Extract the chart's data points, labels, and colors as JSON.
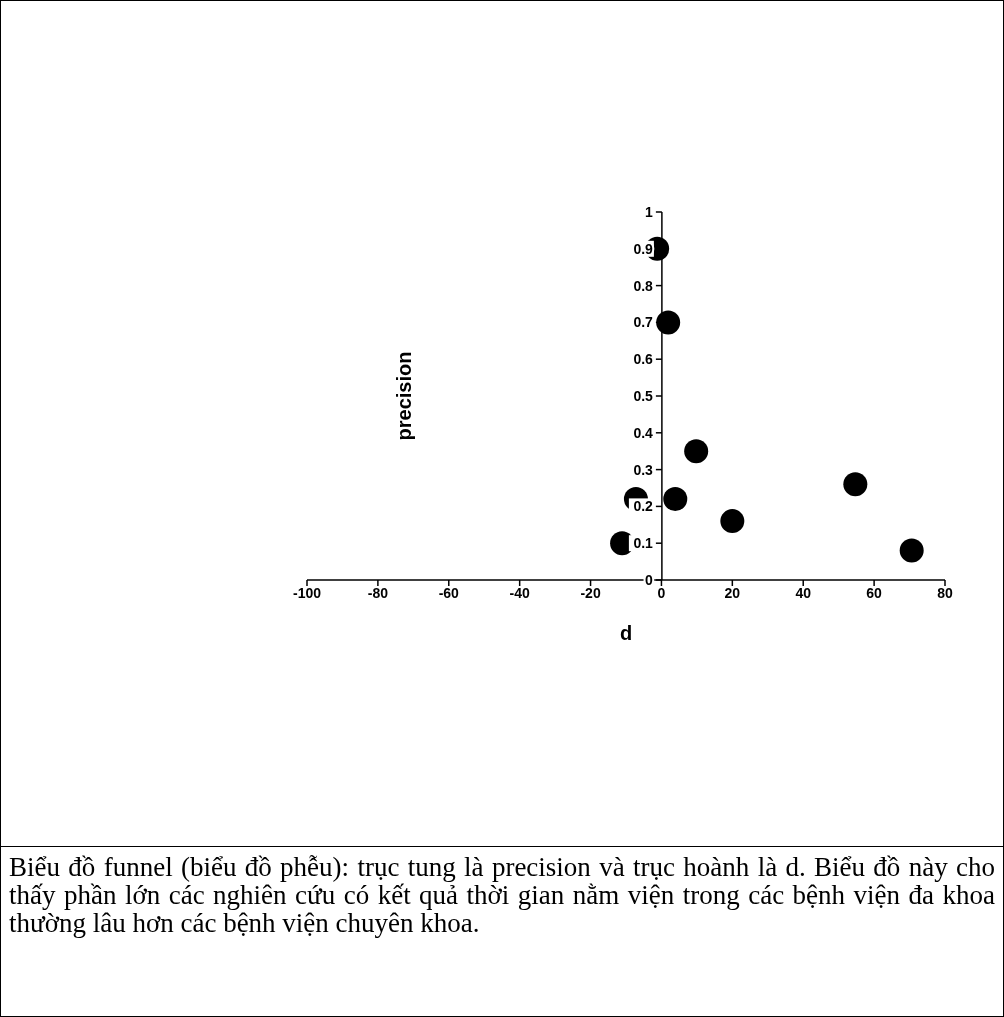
{
  "chart_data": {
    "type": "scatter",
    "xlabel": "d",
    "ylabel": "precision",
    "x": [
      -1.2,
      1.9,
      9.8,
      3.9,
      -7.2,
      -11.1,
      20,
      54.7,
      70.6
    ],
    "values": [
      0.9,
      0.7,
      0.35,
      0.22,
      0.22,
      0.1,
      0.16,
      0.26,
      0.08
    ],
    "color": "#000000",
    "marker": "circle",
    "grid": false,
    "xlim": [
      -100,
      80
    ],
    "xticks": [
      -100,
      -80,
      -60,
      -40,
      -20,
      0,
      20,
      40,
      60,
      80
    ],
    "ylim": [
      0,
      1
    ],
    "yticks": [
      0,
      0.1,
      0.2,
      0.3,
      0.4,
      0.5,
      0.6,
      0.7,
      0.8,
      0.9,
      1
    ],
    "annotations": [
      "Biểu đồ funnel (biểu đồ phễu): trục tung là precision và trục hoành là d. Biểu đồ này cho thấy phần lớn các nghiên cứu có kết quả thời gian nằm viện trong các bệnh viện đa khoa thường lâu hơn các bệnh viện chuyên khoa."
    ]
  }
}
